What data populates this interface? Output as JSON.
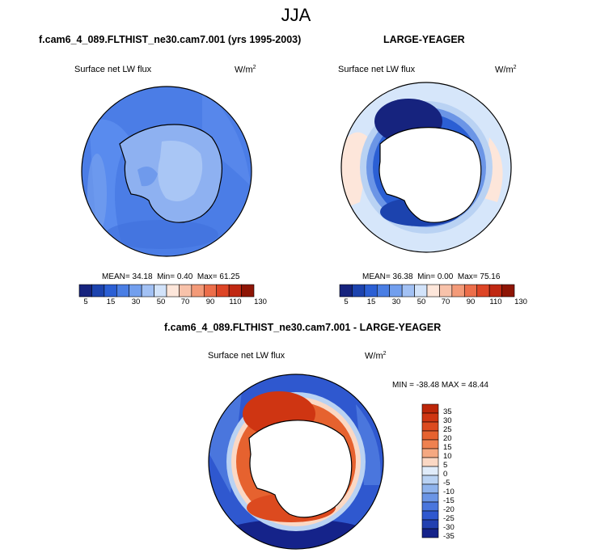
{
  "figure": {
    "title": "JJA"
  },
  "panels": [
    {
      "id": "test",
      "title": "f.cam6_4_089.FLTHIST_ne30.cam7.001 (yrs 1995-2003)",
      "variable_label": "Surface net LW flux",
      "units_base": "W/m",
      "units_exp": "2",
      "stats": {
        "mean_label": "MEAN=",
        "mean": "34.18",
        "min_label": "Min=",
        "min": "0.40",
        "max_label": "Max=",
        "max": "61.25"
      },
      "colorbar_labels": [
        "5",
        "15",
        "30",
        "50",
        "70",
        "90",
        "110",
        "130"
      ]
    },
    {
      "id": "obs",
      "title": "LARGE-YEAGER",
      "variable_label": "Surface net LW flux",
      "units_base": "W/m",
      "units_exp": "2",
      "stats": {
        "mean_label": "MEAN=",
        "mean": "36.38",
        "min_label": "Min=",
        "min": "0.00",
        "max_label": "Max=",
        "max": "75.16"
      },
      "colorbar_labels": [
        "5",
        "15",
        "30",
        "50",
        "70",
        "90",
        "110",
        "130"
      ]
    },
    {
      "id": "diff",
      "title": "f.cam6_4_089.FLTHIST_ne30.cam7.001 - LARGE-YEAGER",
      "variable_label": "Surface net LW flux",
      "units_base": "W/m",
      "units_exp": "2",
      "stats_line": "MIN = -38.48 MAX =  48.44",
      "colorbar_labels": [
        "35",
        "30",
        "25",
        "20",
        "15",
        "10",
        "5",
        "0",
        "-5",
        "-10",
        "-15",
        "-20",
        "-25",
        "-30",
        "-35"
      ]
    }
  ],
  "colors": {
    "seq_palette": [
      "#16237e",
      "#1c43ae",
      "#2b5fd4",
      "#4a7ee4",
      "#729fee",
      "#a2c1f4",
      "#d2e3fa",
      "#fde6da",
      "#f8c2aa",
      "#f39a78",
      "#ec6e4a",
      "#dd4526",
      "#c02812",
      "#8e1505"
    ],
    "div_palette": [
      "#bd2609",
      "#cf3512",
      "#dc4a1f",
      "#e6622f",
      "#ef8150",
      "#f5a881",
      "#fbd8c4",
      "#e0ecfa",
      "#b9d2f3",
      "#8fb3ec",
      "#6b95e6",
      "#4a76dd",
      "#2f58cf",
      "#2240b0",
      "#15238a"
    ],
    "land": "#ffffff",
    "coast": "#000000"
  }
}
